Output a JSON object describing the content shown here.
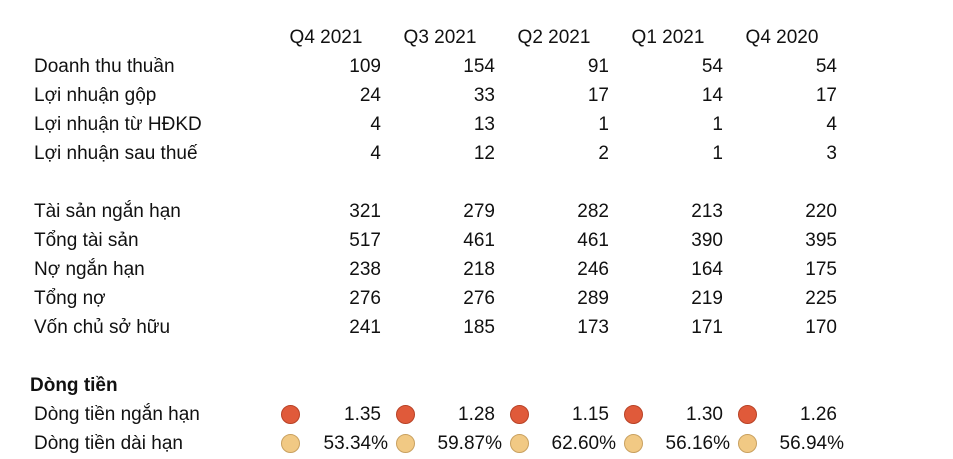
{
  "headers": [
    "Q4 2021",
    "Q3 2021",
    "Q2 2021",
    "Q1 2021",
    "Q4 2020"
  ],
  "income_rows": [
    {
      "label": "Doanh thu thuần",
      "values": [
        "109",
        "154",
        "91",
        "54",
        "54"
      ]
    },
    {
      "label": "Lợi nhuận gộp",
      "values": [
        "24",
        "33",
        "17",
        "14",
        "17"
      ]
    },
    {
      "label": "Lợi nhuận từ HĐKD",
      "values": [
        "4",
        "13",
        "1",
        "1",
        "4"
      ]
    },
    {
      "label": "Lợi nhuận sau thuế",
      "values": [
        "4",
        "12",
        "2",
        "1",
        "3"
      ]
    }
  ],
  "balance_rows": [
    {
      "label": "Tài sản ngắn hạn",
      "values": [
        "321",
        "279",
        "282",
        "213",
        "220"
      ]
    },
    {
      "label": "Tổng tài sản",
      "values": [
        "517",
        "461",
        "461",
        "390",
        "395"
      ]
    },
    {
      "label": "Nợ ngắn hạn",
      "values": [
        "238",
        "218",
        "246",
        "164",
        "175"
      ]
    },
    {
      "label": "Tổng nợ",
      "values": [
        "276",
        "276",
        "289",
        "219",
        "225"
      ]
    },
    {
      "label": "Vốn chủ sở hữu",
      "values": [
        "241",
        "185",
        "173",
        "171",
        "170"
      ]
    }
  ],
  "cashflow": {
    "title": "Dòng tiền",
    "rows": [
      {
        "label": "Dòng tiền ngắn hạn",
        "indicator_color": "#e05a3a",
        "values": [
          "1.35",
          "1.28",
          "1.15",
          "1.30",
          "1.26"
        ]
      },
      {
        "label": "Dòng tiền dài hạn",
        "indicator_color": "#f1c984",
        "values": [
          "53.34%",
          "59.87%",
          "62.60%",
          "56.16%",
          "56.94%"
        ]
      }
    ]
  }
}
